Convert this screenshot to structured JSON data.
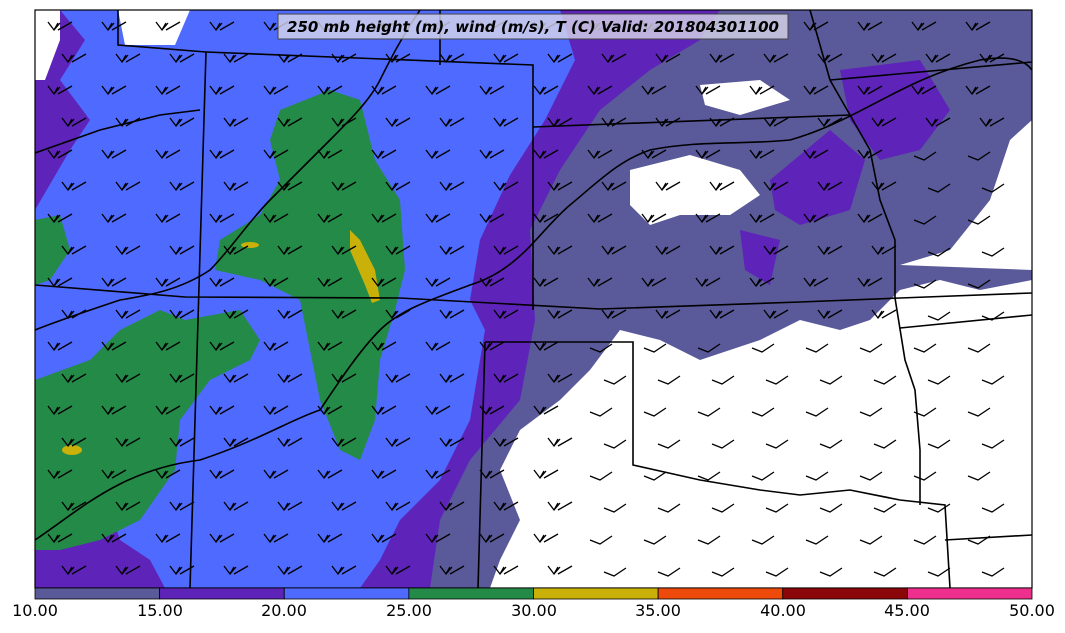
{
  "title": "250 mb height (m), wind (m/s), T (C) Valid: 201804301100",
  "colorbar": {
    "ticks": [
      "10.00",
      "15.00",
      "20.00",
      "25.00",
      "30.00",
      "35.00",
      "40.00",
      "45.00",
      "50.00"
    ],
    "colors": [
      "#5a5a9a",
      "#5e23b8",
      "#4f6aff",
      "#248a47",
      "#c9b10a",
      "#ee4a0c",
      "#8b0608",
      "#ef2f8d"
    ]
  },
  "fill_colors": {
    "c10_15": "#5a5a9a",
    "c15_20": "#5e23b8",
    "c20_25": "#4f6aff",
    "c25_30": "#248a47",
    "c30_35": "#c9b10a",
    "below": "#ffffff"
  },
  "symbols": {
    "wind": "wind-barb-icon"
  }
}
